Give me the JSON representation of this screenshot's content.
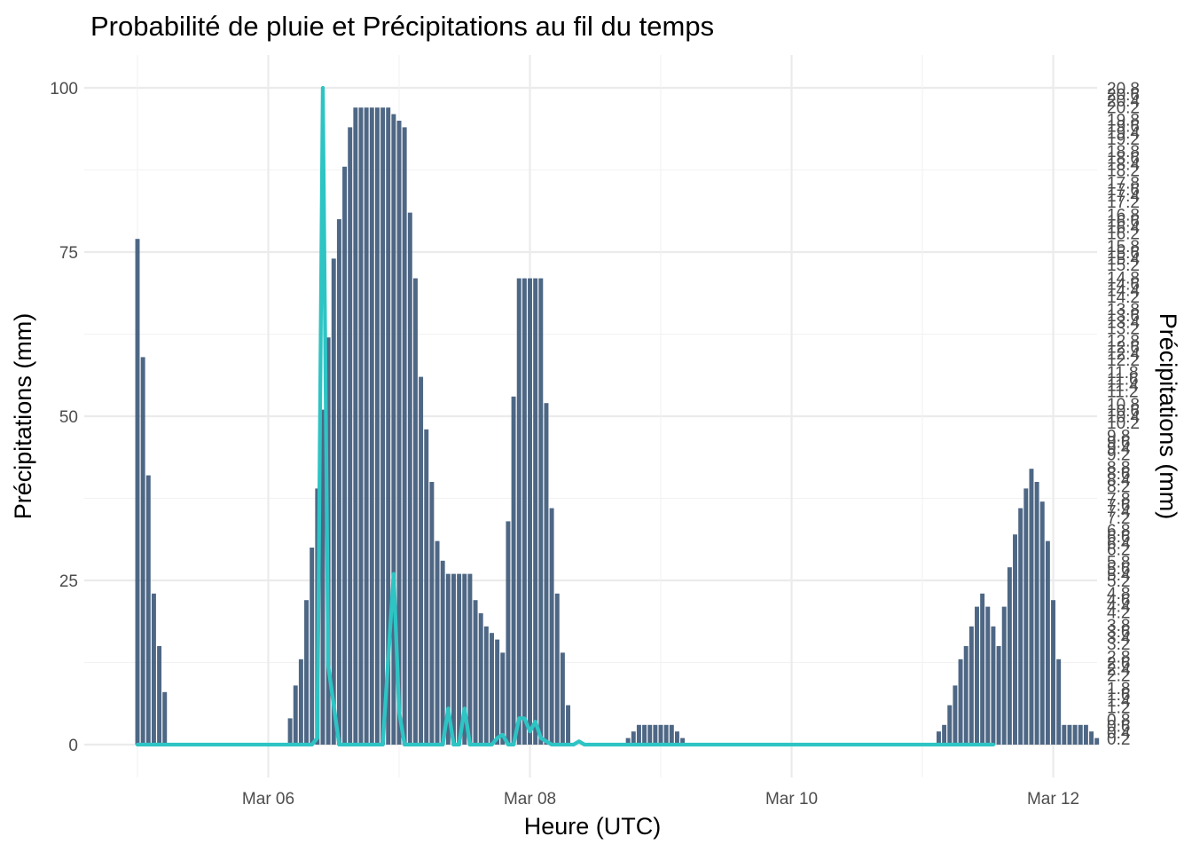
{
  "chart_data": {
    "type": "bar",
    "title": "Probabilité de pluie et Précipitations au fil du temps",
    "xlabel": "Heure (UTC)",
    "ylabel": "Précipitations (mm)",
    "y2label": "Précipitations (mm)",
    "ylim": [
      0,
      100
    ],
    "y_ticks": [
      "0",
      "25",
      "50",
      "75",
      "100"
    ],
    "x_ticks": [
      {
        "label": "Mar 06",
        "hour": 24
      },
      {
        "label": "Mar 08",
        "hour": 72
      },
      {
        "label": "Mar 10",
        "hour": 120
      },
      {
        "label": "Mar 12",
        "hour": 168
      }
    ],
    "x_range_hours": [
      -4,
      174
    ],
    "x_start": "Mar 05 00:00 UTC",
    "y2_ticks": [
      "0.2",
      "0.4",
      "0.6",
      "0.8",
      "1.2",
      "1.4",
      "1.6",
      "1.8",
      "2.2",
      "2.4",
      "2.6",
      "2.8",
      "3.2",
      "3.4",
      "3.6",
      "3.8",
      "4.2",
      "4.4",
      "4.6",
      "4.8",
      "5.2",
      "5.4",
      "5.6",
      "5.8",
      "6.2",
      "6.4",
      "6.6",
      "6.8",
      "7.2",
      "7.4",
      "7.6",
      "7.8",
      "8.2",
      "8.4",
      "8.6",
      "8.8",
      "9.2",
      "9.4",
      "9.6",
      "9.8",
      "10.2",
      "10.4",
      "10.6",
      "10.8",
      "11.2",
      "11.4",
      "11.6",
      "11.8",
      "12.2",
      "12.4",
      "12.6",
      "12.8",
      "13.2",
      "13.4",
      "13.6",
      "13.8",
      "14.2",
      "14.4",
      "14.6",
      "14.8",
      "15.2",
      "15.4",
      "15.6",
      "15.8",
      "16.2",
      "16.4",
      "16.6",
      "16.8",
      "17.2",
      "17.4",
      "17.6",
      "17.8",
      "18.2",
      "18.4",
      "18.6",
      "18.8",
      "19.2",
      "19.4",
      "19.6",
      "19.8",
      "20.2",
      "20.4",
      "20.6",
      "20.8"
    ],
    "series": [
      {
        "type": "bar",
        "color": "#3b5678",
        "x_start_hour": 0,
        "x_step_hours": 1,
        "values": [
          77,
          59,
          41,
          23,
          15,
          8,
          0,
          0,
          0,
          0,
          0,
          0,
          0,
          0,
          0,
          0,
          0,
          0,
          0,
          0,
          0,
          0,
          0,
          0,
          0,
          0,
          0,
          0,
          4,
          9,
          13,
          22,
          30,
          39,
          51,
          62,
          74,
          80,
          88,
          94,
          97,
          97,
          97,
          97,
          97,
          97,
          97,
          96,
          95,
          94,
          81,
          71,
          56,
          48,
          40,
          31,
          28,
          26,
          26,
          26,
          26,
          26,
          22,
          20,
          18,
          17,
          16,
          14,
          34,
          53,
          71,
          71,
          71,
          71,
          71,
          52,
          36,
          23,
          14,
          6,
          0,
          0,
          0,
          0,
          0,
          0,
          0,
          0,
          0,
          0,
          1,
          2,
          3,
          3,
          3,
          3,
          3,
          3,
          3,
          2,
          1,
          0,
          0,
          0,
          0,
          0,
          0,
          0,
          0,
          0,
          0,
          0,
          0,
          0,
          0,
          0,
          0,
          0,
          0,
          0,
          0,
          0,
          0,
          0,
          0,
          0,
          0,
          0,
          0,
          0,
          0,
          0,
          0,
          0,
          0,
          0,
          0,
          0,
          0,
          0,
          0,
          0,
          0,
          0,
          0,
          0,
          0,
          2,
          3,
          6,
          9,
          13,
          15,
          18,
          21,
          23,
          21,
          18,
          15,
          21,
          27,
          32,
          36,
          39,
          42,
          40,
          37,
          31,
          22,
          13,
          3,
          3,
          3,
          3,
          3,
          2,
          1,
          0,
          0,
          0,
          0,
          0,
          0,
          0,
          0,
          0,
          0,
          0,
          0,
          0,
          0,
          0,
          0,
          0,
          0,
          0,
          0,
          0,
          0,
          0,
          0,
          0,
          0,
          0
        ]
      },
      {
        "type": "line",
        "color": "#2ec4c4",
        "x": [
          0,
          32,
          33,
          34,
          35,
          37,
          45,
          47,
          48,
          49,
          51,
          56,
          57,
          58,
          59,
          60,
          61,
          62,
          63,
          65,
          66,
          67,
          68,
          69,
          70,
          71,
          72,
          73,
          74,
          76,
          80,
          81,
          82,
          157
        ],
        "values": [
          0,
          0,
          1,
          100,
          12,
          0,
          0,
          26,
          5,
          0,
          0,
          0,
          5.5,
          0,
          0,
          5.5,
          0,
          0,
          0,
          0,
          1,
          1.5,
          0,
          0,
          4,
          4,
          2,
          3.5,
          1,
          0,
          0,
          0.5,
          0,
          0
        ]
      }
    ]
  }
}
